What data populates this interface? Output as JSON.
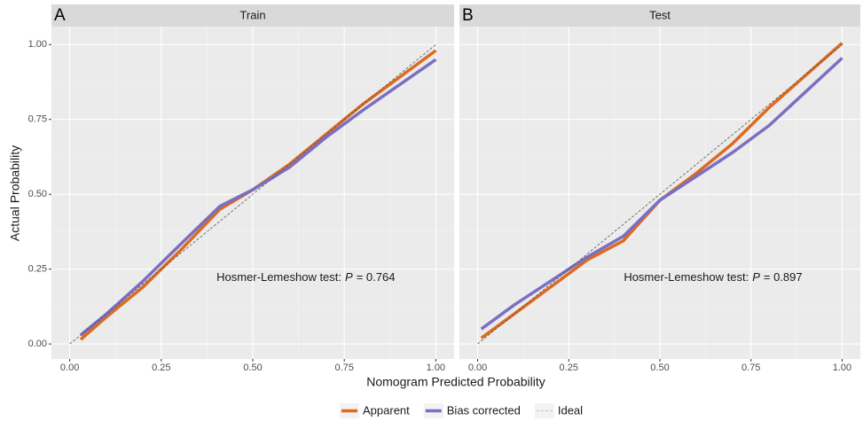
{
  "shared": {
    "x_label": "Nomogram Predicted Probability",
    "y_label": "Actual Probability"
  },
  "chart_data": [
    {
      "type": "line",
      "panel": "A",
      "title": "Train",
      "annotation": {
        "prefix": "Hosmer-Lemeshow test:",
        "italic": "P",
        "suffix": "= 0.764"
      },
      "x": [
        0.03,
        0.1,
        0.2,
        0.3,
        0.41,
        0.5,
        0.6,
        0.7,
        0.8,
        1.0
      ],
      "series": [
        {
          "name": "Apparent",
          "color": "#dd6a1f",
          "values": [
            0.015,
            0.09,
            0.19,
            0.31,
            0.45,
            0.515,
            0.6,
            0.7,
            0.8,
            0.98
          ]
        },
        {
          "name": "Bias corrected",
          "color": "#7a6fc2",
          "values": [
            0.03,
            0.1,
            0.21,
            0.33,
            0.46,
            0.515,
            0.59,
            0.69,
            0.78,
            0.95
          ]
        },
        {
          "name": "Ideal",
          "color": "#555555",
          "dash": true,
          "x": [
            0,
            1
          ],
          "values": [
            0,
            1
          ]
        }
      ],
      "xlim": [
        -0.05,
        1.05
      ],
      "ylim": [
        -0.05,
        1.06
      ],
      "xticks": [
        {
          "value": 0,
          "label": "0.00"
        },
        0.25,
        {
          "value": 0.5,
          "label": "0.50"
        },
        0.75,
        {
          "value": 1,
          "label": "1.00"
        }
      ],
      "yticks": [
        {
          "value": 0,
          "label": "0.00"
        },
        0.25,
        {
          "value": 0.5,
          "label": "0.50"
        },
        0.75,
        {
          "value": 1,
          "label": "1.00"
        }
      ],
      "y_tick_labels": true,
      "grid": true
    },
    {
      "type": "line",
      "panel": "B",
      "title": "Test",
      "annotation": {
        "prefix": "Hosmer-Lemeshow test:",
        "italic": "P",
        "suffix": "= 0.897"
      },
      "x": [
        0.01,
        0.1,
        0.2,
        0.3,
        0.4,
        0.5,
        0.6,
        0.7,
        0.8,
        1.0
      ],
      "series": [
        {
          "name": "Apparent",
          "color": "#dd6a1f",
          "values": [
            0.02,
            0.1,
            0.19,
            0.28,
            0.345,
            0.48,
            0.57,
            0.67,
            0.79,
            1.005
          ]
        },
        {
          "name": "Bias corrected",
          "color": "#7a6fc2",
          "values": [
            0.05,
            0.13,
            0.21,
            0.29,
            0.36,
            0.48,
            0.56,
            0.64,
            0.73,
            0.955
          ]
        },
        {
          "name": "Ideal",
          "color": "#555555",
          "dash": true,
          "x": [
            0,
            1
          ],
          "values": [
            0,
            1
          ]
        }
      ],
      "xlim": [
        -0.05,
        1.05
      ],
      "ylim": [
        -0.05,
        1.06
      ],
      "xticks": [
        {
          "value": 0,
          "label": "0.00"
        },
        0.25,
        {
          "value": 0.5,
          "label": "0.50"
        },
        0.75,
        {
          "value": 1,
          "label": "1.00"
        }
      ],
      "yticks": [
        0,
        0.25,
        0.5,
        0.75,
        1
      ],
      "y_tick_labels": false,
      "grid": true
    }
  ]
}
